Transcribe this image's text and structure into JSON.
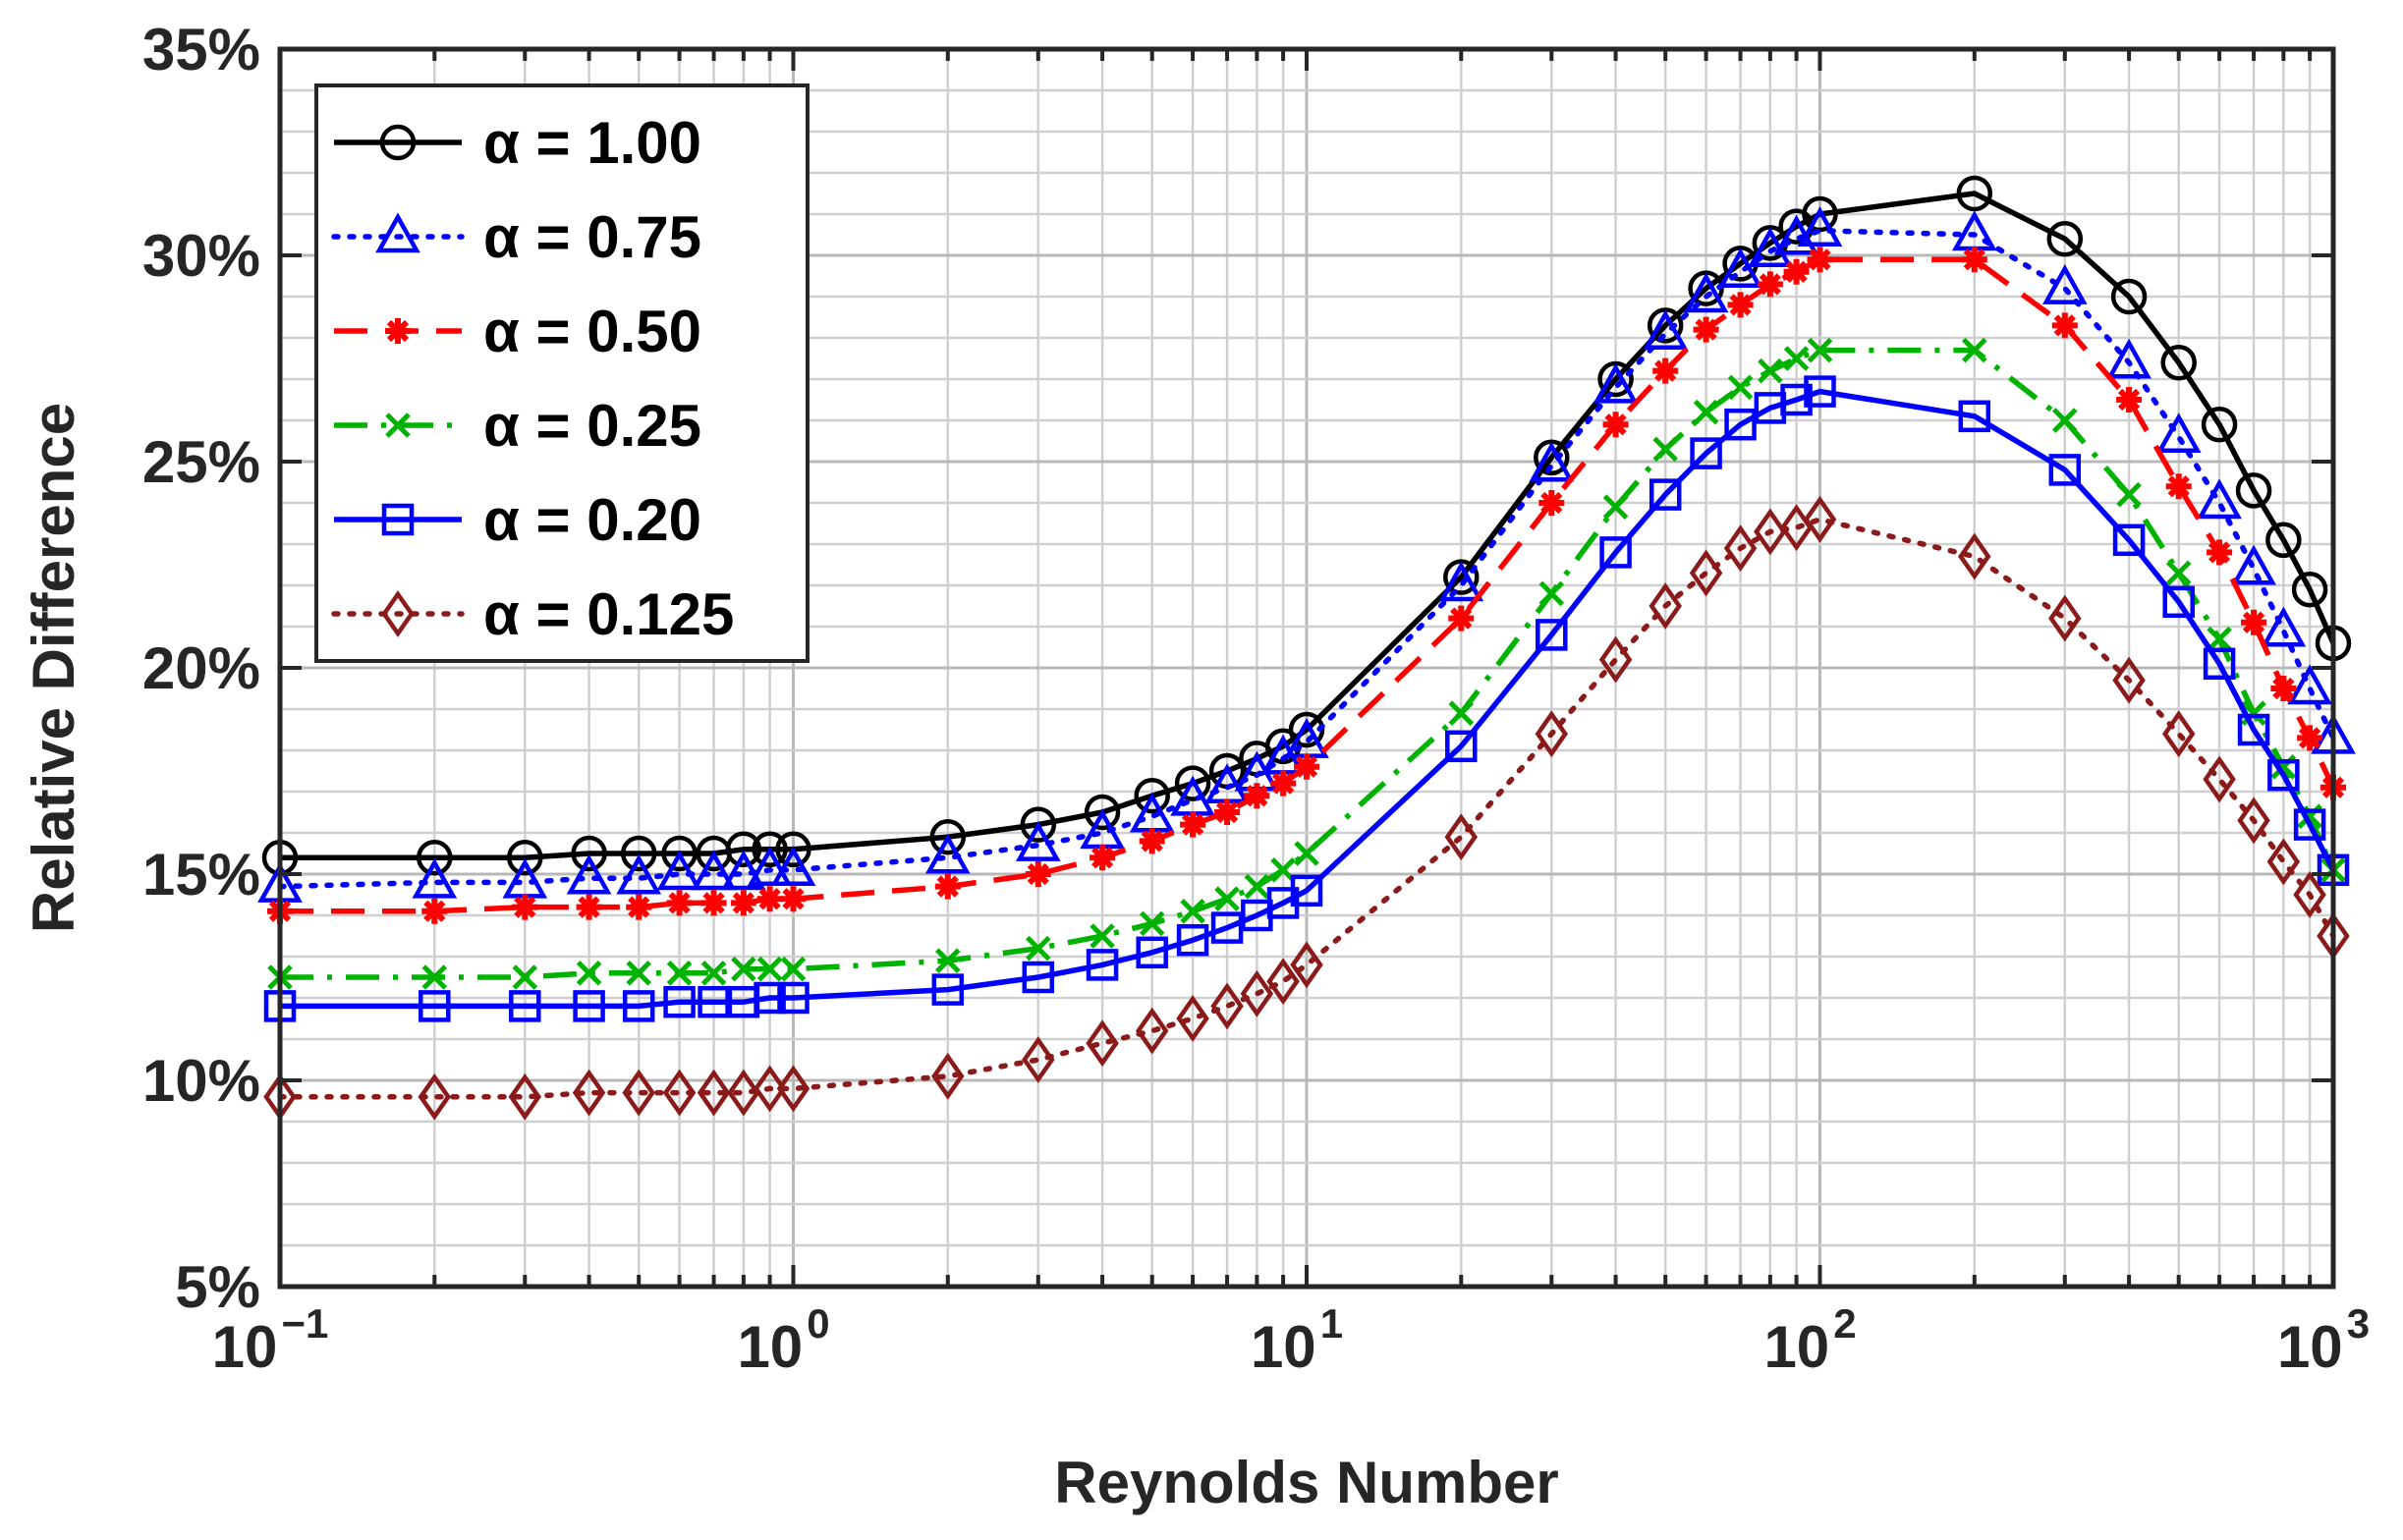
{
  "chart_data": {
    "type": "line",
    "x_scale": "log",
    "xlabel": "Reynolds Number",
    "ylabel": "Relative Difference",
    "xlim": [
      0.1,
      1000
    ],
    "ylim": [
      5,
      35
    ],
    "grid": true,
    "legend_position": "top-left",
    "x_ticks": [
      {
        "value": 0.1,
        "base": "10",
        "exp": "−1"
      },
      {
        "value": 1,
        "base": "10",
        "exp": "0"
      },
      {
        "value": 10,
        "base": "10",
        "exp": "1"
      },
      {
        "value": 100,
        "base": "10",
        "exp": "2"
      },
      {
        "value": 1000,
        "base": "10",
        "exp": "3"
      }
    ],
    "y_ticks": [
      {
        "value": 5,
        "label": "5%"
      },
      {
        "value": 10,
        "label": "10%"
      },
      {
        "value": 15,
        "label": "15%"
      },
      {
        "value": 20,
        "label": "20%"
      },
      {
        "value": 25,
        "label": "25%"
      },
      {
        "value": 30,
        "label": "30%"
      },
      {
        "value": 35,
        "label": "35%"
      }
    ],
    "x": [
      0.1,
      0.2,
      0.3,
      0.4,
      0.5,
      0.6,
      0.7,
      0.8,
      0.9,
      1,
      2,
      3,
      4,
      5,
      6,
      7,
      8,
      9,
      10,
      20,
      30,
      40,
      50,
      60,
      70,
      80,
      90,
      100,
      200,
      300,
      400,
      500,
      600,
      700,
      800,
      900,
      1000
    ],
    "series": [
      {
        "name": "α = 1.00",
        "color": "#000000",
        "dash": "solid",
        "marker": "circle",
        "values": [
          15.4,
          15.4,
          15.4,
          15.5,
          15.5,
          15.5,
          15.5,
          15.6,
          15.6,
          15.6,
          15.9,
          16.2,
          16.5,
          16.9,
          17.2,
          17.5,
          17.8,
          18.1,
          18.5,
          22.2,
          25.1,
          27.0,
          28.3,
          29.2,
          29.8,
          30.3,
          30.7,
          31.0,
          31.5,
          30.4,
          29.0,
          27.4,
          25.9,
          24.3,
          23.1,
          21.9,
          20.6
        ]
      },
      {
        "name": "α = 0.75",
        "color": "#0000ff",
        "dash": "dot",
        "marker": "triangle",
        "values": [
          14.7,
          14.8,
          14.8,
          14.9,
          14.9,
          15.0,
          15.0,
          15.0,
          15.1,
          15.1,
          15.4,
          15.7,
          16.0,
          16.4,
          16.8,
          17.1,
          17.4,
          17.8,
          18.2,
          22.0,
          24.9,
          26.8,
          28.1,
          29.0,
          29.6,
          30.1,
          30.4,
          30.6,
          30.5,
          29.2,
          27.4,
          25.6,
          24.0,
          22.4,
          20.9,
          19.5,
          18.3
        ]
      },
      {
        "name": "α = 0.50",
        "color": "#ff0000",
        "dash": "dash",
        "marker": "asterisk",
        "values": [
          14.1,
          14.1,
          14.2,
          14.2,
          14.2,
          14.3,
          14.3,
          14.3,
          14.4,
          14.4,
          14.7,
          15.0,
          15.4,
          15.8,
          16.2,
          16.5,
          16.9,
          17.2,
          17.6,
          21.2,
          24.0,
          25.9,
          27.2,
          28.2,
          28.8,
          29.3,
          29.6,
          29.9,
          29.9,
          28.3,
          26.5,
          24.4,
          22.8,
          21.1,
          19.5,
          18.3,
          17.1
        ]
      },
      {
        "name": "α = 0.25",
        "color": "#00b300",
        "dash": "dashdot",
        "marker": "x",
        "values": [
          12.5,
          12.5,
          12.5,
          12.6,
          12.6,
          12.6,
          12.6,
          12.7,
          12.7,
          12.7,
          12.9,
          13.2,
          13.5,
          13.8,
          14.1,
          14.4,
          14.7,
          15.1,
          15.5,
          18.9,
          21.8,
          23.9,
          25.3,
          26.2,
          26.8,
          27.2,
          27.5,
          27.7,
          27.7,
          26.0,
          24.2,
          22.3,
          20.7,
          18.9,
          17.6,
          16.4,
          15.1
        ]
      },
      {
        "name": "α = 0.20",
        "color": "#0000ff",
        "dash": "solid",
        "marker": "square",
        "values": [
          11.8,
          11.8,
          11.8,
          11.8,
          11.8,
          11.9,
          11.9,
          11.9,
          12.0,
          12.0,
          12.2,
          12.5,
          12.8,
          13.1,
          13.4,
          13.7,
          14.0,
          14.3,
          14.6,
          18.1,
          20.8,
          22.8,
          24.2,
          25.2,
          25.9,
          26.3,
          26.5,
          26.7,
          26.1,
          24.8,
          23.1,
          21.6,
          20.1,
          18.5,
          17.4,
          16.2,
          15.1
        ]
      },
      {
        "name": "α = 0.125",
        "color": "#8b1a1a",
        "dash": "dot",
        "marker": "diamond",
        "values": [
          9.6,
          9.6,
          9.6,
          9.7,
          9.7,
          9.7,
          9.7,
          9.7,
          9.8,
          9.8,
          10.1,
          10.5,
          10.9,
          11.2,
          11.5,
          11.8,
          12.1,
          12.4,
          12.8,
          15.9,
          18.4,
          20.2,
          21.5,
          22.3,
          22.9,
          23.3,
          23.4,
          23.6,
          22.7,
          21.2,
          19.7,
          18.4,
          17.3,
          16.3,
          15.3,
          14.5,
          13.5
        ]
      }
    ]
  }
}
